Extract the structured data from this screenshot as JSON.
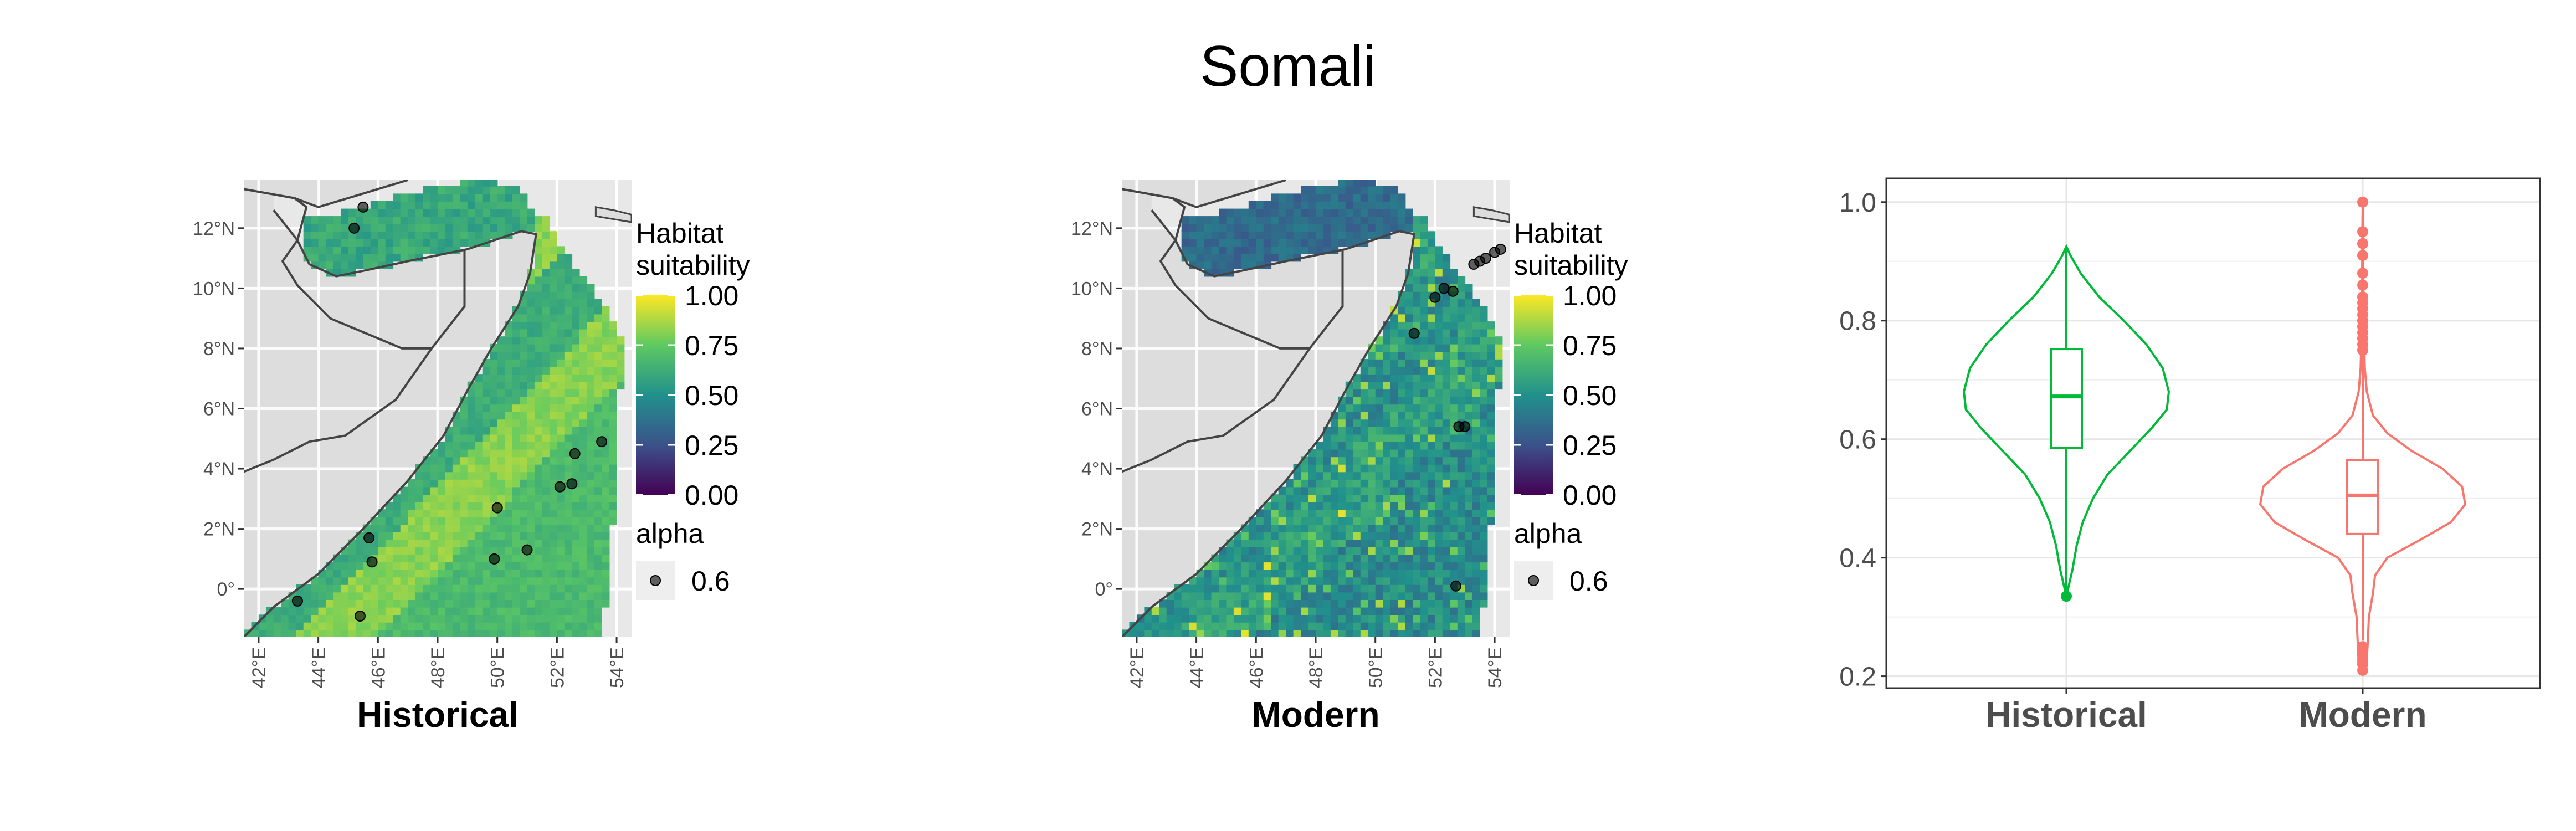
{
  "figure": {
    "title": "Somali"
  },
  "colors": {
    "panel_bg": "#e8e8e8",
    "land": "#dddddd",
    "border": "#444444",
    "historical": "#00ba38",
    "modern": "#f8766d",
    "viridis": [
      "#440154",
      "#3b528b",
      "#21918c",
      "#5ec962",
      "#fde725"
    ]
  },
  "chart_data": [
    {
      "type": "heatmap",
      "name": "historical-map",
      "xlabel": "Historical",
      "x_ticks": [
        "42°E",
        "44°E",
        "46°E",
        "48°E",
        "50°E",
        "52°E",
        "54°E"
      ],
      "x_tick_values": [
        42,
        44,
        46,
        48,
        50,
        52,
        54
      ],
      "y_ticks": [
        "0°",
        "2°N",
        "4°N",
        "6°N",
        "8°N",
        "10°N",
        "12°N"
      ],
      "y_tick_values": [
        0,
        2,
        4,
        6,
        8,
        10,
        12
      ],
      "xlim": [
        41.5,
        54.5
      ],
      "ylim": [
        -1.6,
        13.6
      ],
      "gulf_suitability": 0.6,
      "ocean_suitability": {
        "nearshore": 0.62,
        "mid": 0.82,
        "offshore": 0.68
      },
      "occurrences": [
        [
          45.5,
          12.7
        ],
        [
          45.2,
          12.0
        ],
        [
          53.5,
          4.9
        ],
        [
          52.6,
          4.5
        ],
        [
          52.5,
          3.5
        ],
        [
          52.1,
          3.4
        ],
        [
          50.0,
          2.7
        ],
        [
          51.0,
          1.3
        ],
        [
          49.9,
          1.0
        ],
        [
          45.7,
          1.7
        ],
        [
          45.8,
          0.9
        ],
        [
          43.3,
          -0.4
        ],
        [
          45.4,
          -0.9
        ]
      ],
      "legend": {
        "fill_title_lines": [
          "Habitat",
          "suitability"
        ],
        "fill_ticks": [
          "1.00",
          "0.75",
          "0.50",
          "0.25",
          "0.00"
        ],
        "fill_range": [
          0,
          1
        ],
        "alpha_title": "alpha",
        "alpha_value": "0.6"
      }
    },
    {
      "type": "heatmap",
      "name": "modern-map",
      "xlabel": "Modern",
      "x_ticks": [
        "42°E",
        "44°E",
        "46°E",
        "48°E",
        "50°E",
        "52°E",
        "54°E"
      ],
      "x_tick_values": [
        42,
        44,
        46,
        48,
        50,
        52,
        54
      ],
      "y_ticks": [
        "0°",
        "2°N",
        "4°N",
        "6°N",
        "8°N",
        "10°N",
        "12°N"
      ],
      "y_tick_values": [
        0,
        2,
        4,
        6,
        8,
        10,
        12
      ],
      "xlim": [
        41.5,
        54.5
      ],
      "ylim": [
        -1.6,
        13.6
      ],
      "gulf_suitability": 0.35,
      "ocean_suitability": {
        "nearshore": 0.5,
        "mid": 0.56,
        "offshore": 0.48
      },
      "occurrences": [
        [
          54.2,
          11.3
        ],
        [
          54.0,
          11.2
        ],
        [
          53.7,
          11.0
        ],
        [
          53.5,
          10.9
        ],
        [
          53.3,
          10.8
        ],
        [
          52.3,
          10.0
        ],
        [
          52.6,
          9.9
        ],
        [
          52.0,
          9.7
        ],
        [
          51.3,
          8.5
        ],
        [
          52.8,
          5.4
        ],
        [
          53.0,
          5.4
        ],
        [
          52.7,
          0.1
        ]
      ],
      "legend": {
        "fill_title_lines": [
          "Habitat",
          "suitability"
        ],
        "fill_ticks": [
          "1.00",
          "0.75",
          "0.50",
          "0.25",
          "0.00"
        ],
        "fill_range": [
          0,
          1
        ],
        "alpha_title": "alpha",
        "alpha_value": "0.6"
      }
    },
    {
      "type": "violin",
      "name": "suitability-violin",
      "categories": [
        "Historical",
        "Modern"
      ],
      "y_ticks": [
        "0.2",
        "0.4",
        "0.6",
        "0.8",
        "1.0"
      ],
      "y_tick_values": [
        0.2,
        0.4,
        0.6,
        0.8,
        1.0
      ],
      "ylim": [
        0.18,
        1.04
      ],
      "series": [
        {
          "category": "Historical",
          "color": "#00ba38",
          "min": 0.335,
          "q1": 0.585,
          "median": 0.672,
          "q3": 0.752,
          "max": 0.925,
          "whisker_low": 0.345,
          "whisker_high": 0.925,
          "outliers": [
            0.335
          ],
          "density": [
            [
              0.335,
              0.0
            ],
            [
              0.35,
              0.02
            ],
            [
              0.38,
              0.06
            ],
            [
              0.42,
              0.1
            ],
            [
              0.46,
              0.16
            ],
            [
              0.5,
              0.26
            ],
            [
              0.54,
              0.4
            ],
            [
              0.58,
              0.62
            ],
            [
              0.62,
              0.84
            ],
            [
              0.65,
              0.98
            ],
            [
              0.68,
              1.0
            ],
            [
              0.72,
              0.94
            ],
            [
              0.76,
              0.78
            ],
            [
              0.8,
              0.56
            ],
            [
              0.84,
              0.32
            ],
            [
              0.88,
              0.14
            ],
            [
              0.91,
              0.04
            ],
            [
              0.925,
              0.0
            ]
          ]
        },
        {
          "category": "Modern",
          "color": "#f8766d",
          "min": 0.21,
          "q1": 0.44,
          "median": 0.505,
          "q3": 0.565,
          "max": 1.0,
          "whisker_low": 0.26,
          "whisker_high": 0.74,
          "outliers": [
            0.21,
            0.22,
            0.225,
            0.23,
            0.235,
            0.24,
            0.245,
            0.25,
            0.75,
            0.76,
            0.77,
            0.78,
            0.79,
            0.8,
            0.81,
            0.82,
            0.83,
            0.84,
            0.86,
            0.88,
            0.91,
            0.93,
            0.95,
            1.0
          ],
          "density": [
            [
              0.21,
              0.0
            ],
            [
              0.23,
              0.04
            ],
            [
              0.26,
              0.05
            ],
            [
              0.3,
              0.06
            ],
            [
              0.34,
              0.1
            ],
            [
              0.37,
              0.12
            ],
            [
              0.4,
              0.24
            ],
            [
              0.43,
              0.56
            ],
            [
              0.46,
              0.86
            ],
            [
              0.49,
              1.0
            ],
            [
              0.52,
              0.97
            ],
            [
              0.55,
              0.78
            ],
            [
              0.58,
              0.48
            ],
            [
              0.61,
              0.24
            ],
            [
              0.64,
              0.1
            ],
            [
              0.68,
              0.04
            ],
            [
              0.72,
              0.02
            ],
            [
              0.78,
              0.012
            ],
            [
              0.86,
              0.006
            ],
            [
              0.95,
              0.003
            ],
            [
              1.0,
              0.0
            ]
          ]
        }
      ]
    }
  ]
}
